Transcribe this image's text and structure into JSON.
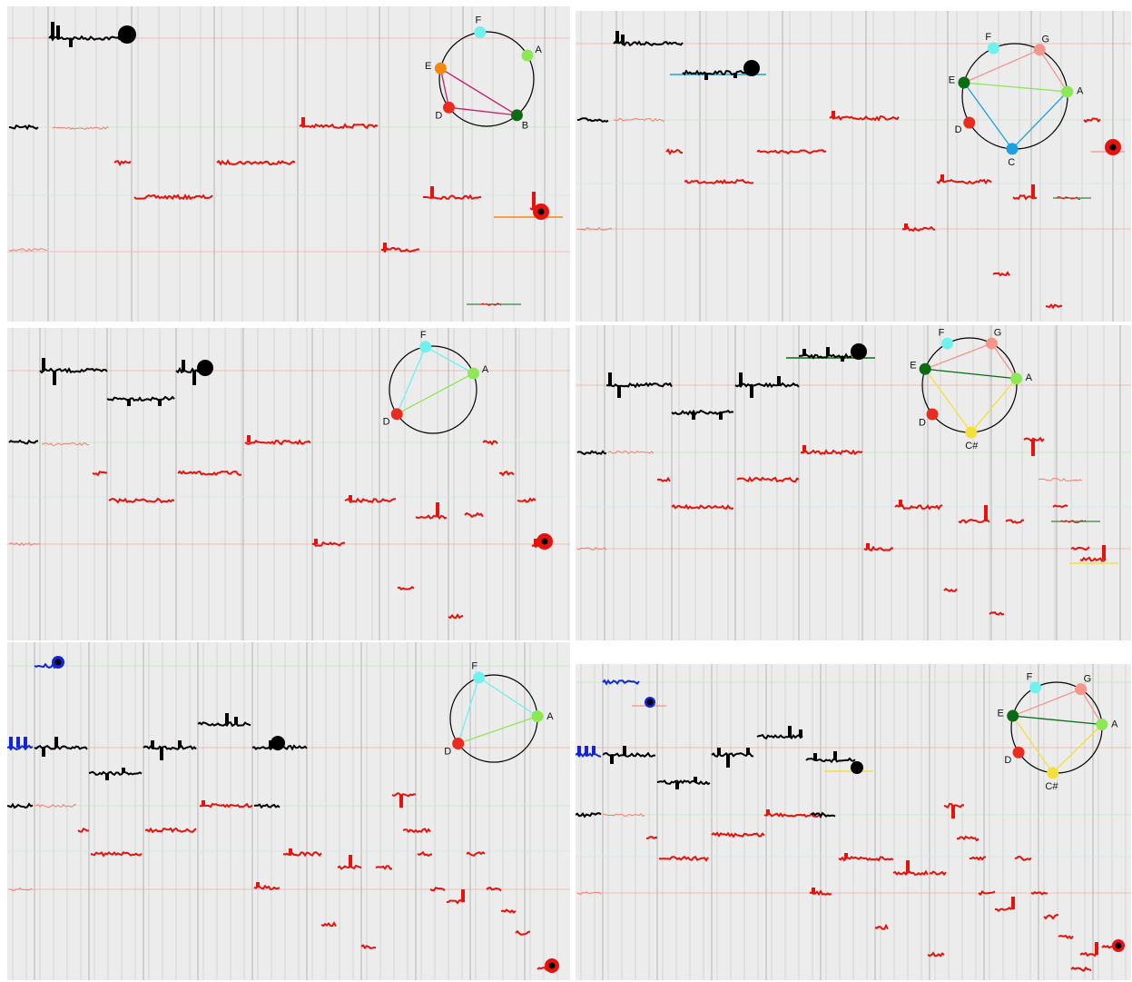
{
  "panels": [
    {
      "id": "panel-1",
      "circle": {
        "notes": [
          {
            "name": "F",
            "color": "#6ff2ee"
          },
          {
            "name": "A",
            "color": "#8de855"
          },
          {
            "name": "B",
            "color": "#0a6b12"
          },
          {
            "name": "D",
            "color": "#ea2b1f"
          },
          {
            "name": "E",
            "color": "#f7880f"
          }
        ],
        "edges": [
          {
            "from": "E",
            "to": "B",
            "color": "#c0206d"
          },
          {
            "from": "E",
            "to": "D",
            "color": "#c0206d"
          },
          {
            "from": "D",
            "to": "B",
            "color": "#c0206d"
          }
        ]
      }
    },
    {
      "id": "panel-2",
      "circle": {
        "notes": [
          {
            "name": "F",
            "color": "#6ff2ee"
          },
          {
            "name": "G",
            "color": "#f4968a"
          },
          {
            "name": "A",
            "color": "#8de855"
          },
          {
            "name": "C",
            "color": "#1d9fe6"
          },
          {
            "name": "D",
            "color": "#ea2b1f"
          },
          {
            "name": "E",
            "color": "#0a6b12"
          }
        ],
        "edges": [
          {
            "from": "E",
            "to": "G",
            "color": "#f4968a"
          },
          {
            "from": "G",
            "to": "A",
            "color": "#f4968a"
          },
          {
            "from": "E",
            "to": "A",
            "color": "#8de855"
          },
          {
            "from": "E",
            "to": "C",
            "color": "#1d9fe6"
          },
          {
            "from": "A",
            "to": "C",
            "color": "#1d9fe6"
          }
        ]
      }
    },
    {
      "id": "panel-3",
      "circle": {
        "notes": [
          {
            "name": "F",
            "color": "#6ff2ee"
          },
          {
            "name": "A",
            "color": "#8de855"
          },
          {
            "name": "D",
            "color": "#ea2b1f"
          }
        ],
        "edges": [
          {
            "from": "F",
            "to": "D",
            "color": "#6ff2ee"
          },
          {
            "from": "F",
            "to": "A",
            "color": "#6ff2ee"
          },
          {
            "from": "D",
            "to": "A",
            "color": "#8de855"
          }
        ]
      }
    },
    {
      "id": "panel-4",
      "circle": {
        "notes": [
          {
            "name": "F",
            "color": "#6ff2ee"
          },
          {
            "name": "G",
            "color": "#f4968a"
          },
          {
            "name": "A",
            "color": "#8de855"
          },
          {
            "name": "C#",
            "color": "#f4e03a"
          },
          {
            "name": "D",
            "color": "#ea2b1f"
          },
          {
            "name": "E",
            "color": "#0a6b12"
          }
        ],
        "edges": [
          {
            "from": "E",
            "to": "G",
            "color": "#f4968a"
          },
          {
            "from": "G",
            "to": "A",
            "color": "#f4968a"
          },
          {
            "from": "E",
            "to": "A",
            "color": "#0a6b12"
          },
          {
            "from": "E",
            "to": "C#",
            "color": "#f4e03a"
          },
          {
            "from": "A",
            "to": "C#",
            "color": "#f4e03a"
          }
        ]
      }
    },
    {
      "id": "panel-5",
      "circle": {
        "notes": [
          {
            "name": "F",
            "color": "#6ff2ee"
          },
          {
            "name": "A",
            "color": "#8de855"
          },
          {
            "name": "D",
            "color": "#ea2b1f"
          }
        ],
        "edges": [
          {
            "from": "F",
            "to": "D",
            "color": "#6ff2ee"
          },
          {
            "from": "F",
            "to": "A",
            "color": "#6ff2ee"
          },
          {
            "from": "D",
            "to": "A",
            "color": "#8de855"
          }
        ]
      }
    },
    {
      "id": "panel-6",
      "circle": {
        "notes": [
          {
            "name": "F",
            "color": "#6ff2ee"
          },
          {
            "name": "G",
            "color": "#f4968a"
          },
          {
            "name": "A",
            "color": "#8de855"
          },
          {
            "name": "C#",
            "color": "#f4e03a"
          },
          {
            "name": "D",
            "color": "#ea2b1f"
          },
          {
            "name": "E",
            "color": "#0a6b12"
          }
        ],
        "edges": [
          {
            "from": "E",
            "to": "G",
            "color": "#f4968a"
          },
          {
            "from": "G",
            "to": "A",
            "color": "#f4968a"
          },
          {
            "from": "E",
            "to": "A",
            "color": "#0a6b12"
          },
          {
            "from": "E",
            "to": "C#",
            "color": "#f4e03a"
          },
          {
            "from": "A",
            "to": "C#",
            "color": "#f4e03a"
          }
        ]
      }
    }
  ],
  "colors": {
    "background": "#ececec",
    "grid_major": "#b4b4b4",
    "grid_minor": "#d6d6d6",
    "track_black": "#000000",
    "track_red": "#e8120c",
    "track_pink": "#f07f6e",
    "track_blue": "#1226d8",
    "cursor": "#e8120c"
  }
}
